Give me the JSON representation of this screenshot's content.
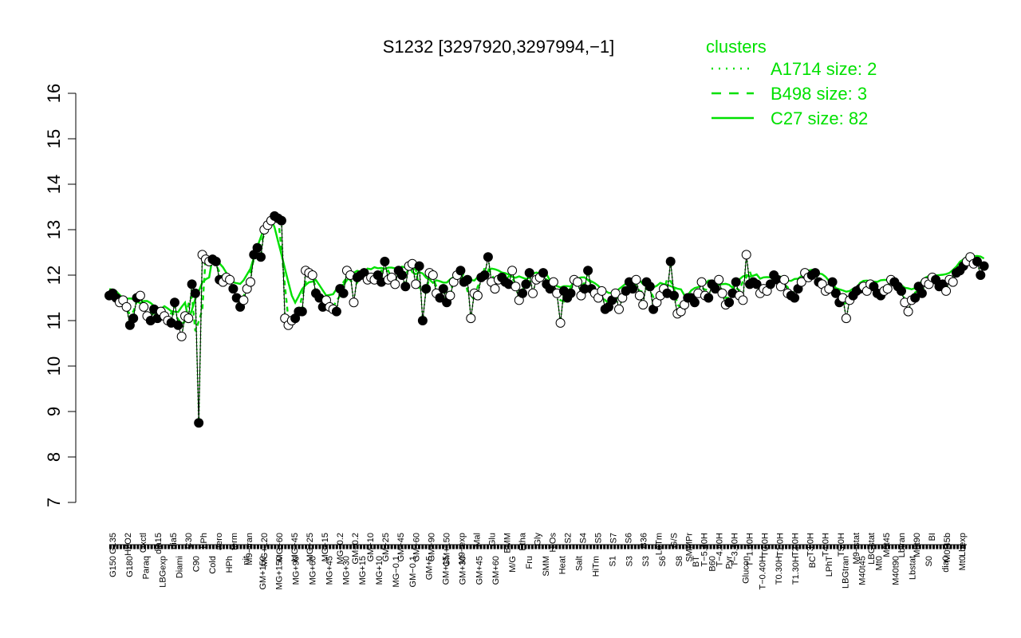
{
  "chart_data": {
    "type": "line",
    "title": "S1232 [3297920,3297994,−1]",
    "xlabel": "",
    "ylabel": "",
    "ylim": [
      7,
      16
    ],
    "yticks": [
      7,
      8,
      9,
      10,
      11,
      12,
      13,
      14,
      15,
      16
    ],
    "grid": false,
    "legend_position": "top-right",
    "legend_title": "clusters",
    "legend": [
      {
        "label": "A1714 size: 2",
        "style": "dotted",
        "color": "#00e000"
      },
      {
        "label": "B498 size: 3",
        "style": "dashed",
        "color": "#00e000"
      },
      {
        "label": "C27 size: 82",
        "style": "solid",
        "color": "#00e000"
      }
    ],
    "x_tick_labels_top": [
      "G135",
      "H2O2",
      "Oxctl",
      "dia15",
      "dia5",
      "C30",
      "LPh",
      "aero",
      "ferm",
      "M9−tran",
      "MG+120",
      "MG+60",
      "MG+45",
      "MG+25",
      "MG+15",
      "MG−0.2",
      "GM−0.2",
      "GM+10",
      "GM+25",
      "GM+45",
      "GM+60",
      "GM+90",
      "GM+150",
      "M9−exp",
      "Mal",
      "Glu",
      "BMM",
      "Etha",
      "Gly",
      "HiOs",
      "S2",
      "S4",
      "S5",
      "S7",
      "S6",
      "B36",
      "LoTm",
      "G/S",
      "SMMPr",
      "T−5.40H",
      "T−4.40H",
      "T−3.40H",
      "T−1.40H",
      "T0.0H",
      "T1.0H",
      "T2.0H",
      "T3.0H",
      "T4.0H",
      "T5.0H",
      "M9−stat",
      "LBGstat",
      "M0t45",
      "Lbtran",
      "M0t90",
      "BI",
      "M0t45b",
      "Lbexp"
    ],
    "x_tick_labels_bottom": [
      "G150",
      "G180",
      "Paraq",
      "LBGexp",
      "Diami",
      "C90",
      "Cold",
      "HPh",
      "nit",
      "GM+150",
      "MG+150",
      "MG+90",
      "MG+60",
      "MG+45",
      "MG+30",
      "MG+15",
      "MG+10",
      "MG−0.1",
      "GM−0.1",
      "GM+5",
      "GM+15",
      "GM+30",
      "GM+45",
      "GM+60",
      "M/G",
      "Fru",
      "SMM",
      "Heat",
      "Salt",
      "HiTm",
      "S1",
      "S3",
      "S3",
      "S6",
      "S8",
      "BT",
      "B60",
      "Pyr",
      "Glucon",
      "T−0.40H",
      "T0.30H",
      "T1.30H",
      "BC",
      "LPhT",
      "LBGtran",
      "M40t45",
      "Mt0",
      "M40t90",
      "Lbstat",
      "S0",
      "dia0",
      "Mt0"
    ],
    "x_count": 250,
    "series": [
      {
        "values": [
          11.55,
          11.6,
          11.5,
          11.4,
          11.45,
          11.3,
          10.9,
          11.05,
          11.5,
          11.55,
          11.3,
          11.1,
          11.0,
          11.25,
          11.05,
          11.2,
          11.1,
          11.0,
          10.95,
          11.4,
          10.9,
          10.65,
          11.1,
          11.05,
          11.8,
          11.6,
          8.75,
          12.45,
          12.35,
          12.3,
          12.35,
          12.3,
          11.9,
          11.85,
          11.95,
          11.9,
          11.7,
          11.5,
          11.3,
          11.45,
          11.7,
          11.85,
          12.45,
          12.6,
          12.4,
          13.0,
          13.1,
          13.2,
          13.3,
          13.25,
          13.2,
          11.05,
          10.9,
          11.0,
          11.05,
          11.2,
          11.2,
          12.1,
          12.05,
          12.0,
          11.6,
          11.5,
          11.3,
          11.45,
          11.3,
          11.25,
          11.2,
          11.7,
          11.6,
          12.1,
          12.0,
          11.4,
          11.95,
          12.0,
          12.05,
          11.9,
          11.95,
          11.9,
          12.0,
          11.85,
          12.3,
          11.9,
          11.95,
          11.8,
          12.1,
          12.0,
          11.75,
          12.2,
          12.25,
          11.8,
          12.2,
          11.0,
          11.7,
          12.05,
          12.0,
          11.6,
          11.5,
          11.7,
          11.4,
          11.55,
          11.85,
          12.0,
          12.1,
          11.85,
          11.9,
          11.05,
          11.6,
          11.55,
          11.95,
          12.0,
          12.4,
          11.85,
          11.7,
          11.9,
          11.95,
          11.85,
          11.8,
          12.1,
          11.75,
          11.45,
          11.6,
          11.8,
          12.05,
          11.6,
          11.9,
          11.95,
          12.05,
          11.8,
          11.7,
          11.85,
          11.6,
          10.95,
          11.65,
          11.5,
          11.6,
          11.9,
          11.85,
          11.55,
          11.7,
          12.1,
          11.7,
          11.6,
          11.5,
          11.65,
          11.25,
          11.3,
          11.45,
          11.6,
          11.25,
          11.5,
          11.65,
          11.85,
          11.7,
          11.9,
          11.55,
          11.35,
          11.85,
          11.75,
          11.25,
          11.4,
          11.55,
          11.7,
          11.6,
          12.3,
          11.55,
          11.15,
          11.2,
          11.35,
          11.5,
          11.5,
          11.4,
          11.6,
          11.85,
          11.55,
          11.5,
          11.8,
          11.7,
          11.9,
          11.6,
          11.35,
          11.4,
          11.6,
          11.85,
          11.55,
          11.45,
          12.45,
          11.8,
          11.85,
          11.8,
          11.6,
          11.7,
          11.65,
          11.8,
          12.0,
          11.9,
          11.75,
          11.9,
          11.6,
          11.55,
          11.5,
          11.7,
          11.85,
          12.05,
          11.95,
          12.0,
          12.05,
          11.85,
          11.8,
          11.65,
          11.7,
          11.85,
          11.6,
          11.4,
          11.5,
          11.05,
          11.45,
          11.55,
          11.65,
          11.7,
          11.75,
          11.65,
          11.8,
          11.75,
          11.6,
          11.55,
          11.65,
          11.7,
          11.9,
          11.85,
          11.75,
          11.65,
          11.4,
          11.2,
          11.45,
          11.5,
          11.75,
          11.6,
          11.85,
          11.8,
          11.95,
          11.9,
          11.75,
          11.8,
          11.65,
          11.9,
          11.85,
          12.05,
          12.1,
          12.2,
          12.3,
          12.4,
          12.25,
          12.3,
          12.0,
          12.2
        ]
      }
    ]
  }
}
